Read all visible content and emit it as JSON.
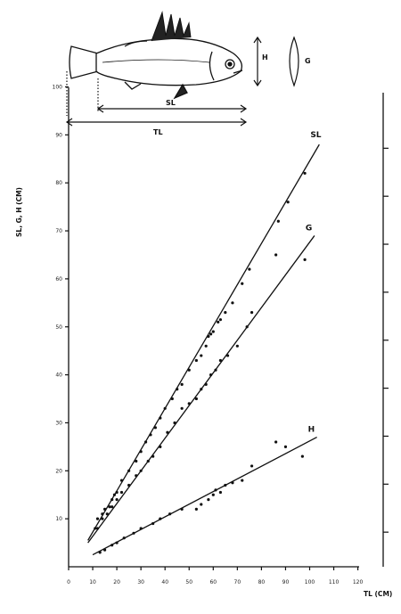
{
  "chart_data": {
    "type": "scatter",
    "xlabel": "TL (CM)",
    "ylabel": "SL, G, H (CM)",
    "xlim": [
      0,
      120
    ],
    "ylim": [
      0,
      100
    ],
    "x_ticks": [
      "0",
      "10",
      "20",
      "30",
      "40",
      "50",
      "60",
      "70",
      "80",
      "90",
      "100",
      "110",
      "120"
    ],
    "y_ticks": [
      "10",
      "20",
      "30",
      "40",
      "50",
      "60",
      "70",
      "80",
      "90",
      "100"
    ],
    "grid": false,
    "series": [
      {
        "name": "SL",
        "line": [
          [
            8,
            5.5
          ],
          [
            104,
            88
          ]
        ],
        "points": [
          [
            11,
            8
          ],
          [
            12,
            10
          ],
          [
            14,
            11
          ],
          [
            15,
            12
          ],
          [
            17,
            12.5
          ],
          [
            18,
            14
          ],
          [
            19,
            15
          ],
          [
            20,
            15.5
          ],
          [
            22,
            18
          ],
          [
            25,
            20
          ],
          [
            28,
            22
          ],
          [
            30,
            24
          ],
          [
            32,
            26
          ],
          [
            34,
            27.5
          ],
          [
            36,
            29
          ],
          [
            38,
            31
          ],
          [
            40,
            33
          ],
          [
            43,
            35
          ],
          [
            45,
            37
          ],
          [
            47,
            38
          ],
          [
            50,
            41
          ],
          [
            53,
            43
          ],
          [
            55,
            44
          ],
          [
            57,
            46
          ],
          [
            58,
            48
          ],
          [
            59,
            48.5
          ],
          [
            60,
            49
          ],
          [
            62,
            51
          ],
          [
            63,
            51.5
          ],
          [
            65,
            53
          ],
          [
            68,
            55
          ],
          [
            72,
            59
          ],
          [
            75,
            62
          ],
          [
            87,
            72
          ],
          [
            91,
            76
          ],
          [
            98,
            82
          ]
        ]
      },
      {
        "name": "G",
        "line": [
          [
            8,
            5
          ],
          [
            102,
            69
          ]
        ],
        "points": [
          [
            12,
            8
          ],
          [
            14,
            10
          ],
          [
            16,
            11
          ],
          [
            18,
            12.5
          ],
          [
            20,
            14
          ],
          [
            22,
            15.5
          ],
          [
            25,
            17
          ],
          [
            28,
            19
          ],
          [
            30,
            20
          ],
          [
            33,
            22
          ],
          [
            35,
            23
          ],
          [
            38,
            25
          ],
          [
            41,
            28
          ],
          [
            44,
            30
          ],
          [
            47,
            33
          ],
          [
            50,
            34
          ],
          [
            53,
            35
          ],
          [
            55,
            37
          ],
          [
            57,
            38
          ],
          [
            59,
            40
          ],
          [
            61,
            41
          ],
          [
            63,
            43
          ],
          [
            66,
            44
          ],
          [
            70,
            46
          ],
          [
            74,
            50
          ],
          [
            76,
            53
          ],
          [
            86,
            65
          ],
          [
            98,
            64
          ]
        ]
      },
      {
        "name": "H",
        "line": [
          [
            10,
            2.5
          ],
          [
            103,
            27
          ]
        ],
        "points": [
          [
            13,
            3
          ],
          [
            15,
            3.5
          ],
          [
            18,
            4.5
          ],
          [
            20,
            5
          ],
          [
            23,
            6
          ],
          [
            27,
            7
          ],
          [
            30,
            8
          ],
          [
            35,
            9
          ],
          [
            38,
            10
          ],
          [
            42,
            11
          ],
          [
            47,
            12
          ],
          [
            53,
            12
          ],
          [
            55,
            13
          ],
          [
            58,
            14
          ],
          [
            60,
            15
          ],
          [
            61,
            16
          ],
          [
            63,
            15.5
          ],
          [
            65,
            17
          ],
          [
            68,
            17.5
          ],
          [
            72,
            18
          ],
          [
            76,
            21
          ],
          [
            86,
            26
          ],
          [
            90,
            25
          ],
          [
            97,
            23
          ]
        ]
      }
    ]
  },
  "diagram": {
    "labels": [
      "H",
      "G",
      "SL",
      "TL"
    ]
  }
}
